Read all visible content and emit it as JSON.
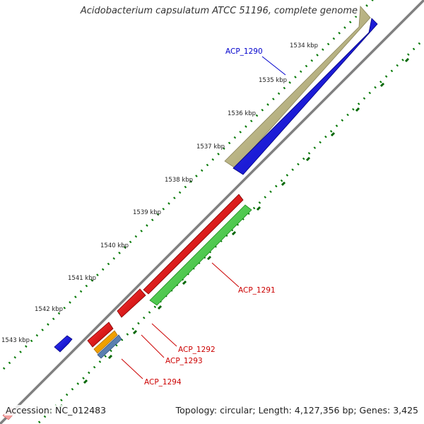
{
  "title": "Acidobacterium capsulatum ATCC 51196, complete genome",
  "footer": {
    "accession": "Accession: NC_012483",
    "summary": "Topology: circular; Length: 4,127,356 bp; Genes: 3,425"
  },
  "ruler": {
    "ticks": [
      "1534 kbp",
      "1535 kbp",
      "1536 kbp",
      "1537 kbp",
      "1538 kbp",
      "1539 kbp",
      "1540 kbp",
      "1541 kbp",
      "1542 kbp",
      "1543 kbp"
    ]
  },
  "genes": [
    {
      "label": "ACP_1290",
      "color": "#0000cc"
    },
    {
      "label": "ACP_1291",
      "color": "#cc0000"
    },
    {
      "label": "ACP_1292",
      "color": "#cc0000"
    },
    {
      "label": "ACP_1293",
      "color": "#cc0000"
    },
    {
      "label": "ACP_1294",
      "color": "#cc0000"
    }
  ],
  "colors": {
    "backbone": "#808080",
    "tick_dots": "#007700",
    "forward_gene": "#0000ee",
    "reverse_gene": "#ee0000",
    "orf_khaki": "#b5ae7a",
    "orf_green": "#3ccc3c",
    "orf_orange": "#f0a000",
    "orf_steel": "#5a7fb0"
  }
}
